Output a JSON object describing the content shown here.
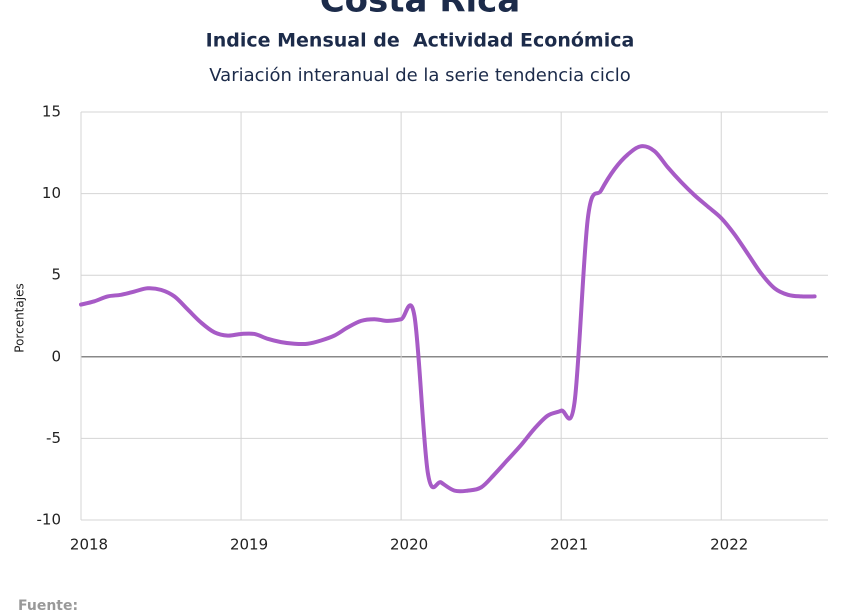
{
  "chart_data": {
    "type": "line",
    "title": "Costa Rica",
    "subtitle": "Indice Mensual de  Actividad Económica",
    "subtitle2": "Variación interanual de la serie tendencia ciclo",
    "y_label": "Porcentajes",
    "source": "Fuente:",
    "x": [
      2018,
      2018.0833,
      2018.1667,
      2018.25,
      2018.3333,
      2018.4167,
      2018.5,
      2018.5833,
      2018.6667,
      2018.75,
      2018.8333,
      2018.9167,
      2019,
      2019.0833,
      2019.1667,
      2019.25,
      2019.3333,
      2019.4167,
      2019.5,
      2019.5833,
      2019.6667,
      2019.75,
      2019.8333,
      2019.9167,
      2020,
      2020.0833,
      2020.1667,
      2020.25,
      2020.3333,
      2020.4167,
      2020.5,
      2020.5833,
      2020.6667,
      2020.75,
      2020.8333,
      2020.9167,
      2021,
      2021.0833,
      2021.1667,
      2021.25,
      2021.3333,
      2021.4167,
      2021.5,
      2021.5833,
      2021.6667,
      2021.75,
      2021.8333,
      2021.9167,
      2022,
      2022.0833,
      2022.1667,
      2022.25,
      2022.3333,
      2022.4167,
      2022.5,
      2022.5833
    ],
    "series": [
      {
        "name": "Variación interanual",
        "color": "#a75bc6",
        "values": [
          3.2,
          3.4,
          3.7,
          3.8,
          4.0,
          4.2,
          4.1,
          3.7,
          2.9,
          2.1,
          1.5,
          1.3,
          1.4,
          1.4,
          1.1,
          0.9,
          0.8,
          0.8,
          1.0,
          1.3,
          1.8,
          2.2,
          2.3,
          2.2,
          2.3,
          2.5,
          -7.1,
          -7.7,
          -8.2,
          -8.2,
          -8.0,
          -7.2,
          -6.3,
          -5.4,
          -4.4,
          -3.6,
          -3.3,
          -2.8,
          8.5,
          10.2,
          11.5,
          12.4,
          12.9,
          12.6,
          11.6,
          10.7,
          9.9,
          9.2,
          8.5,
          7.5,
          6.3,
          5.1,
          4.2,
          3.8,
          3.7,
          3.7
        ]
      }
    ],
    "xlim": [
      2018,
      2022.667
    ],
    "xticks": [
      2018,
      2019,
      2020,
      2021,
      2022
    ],
    "ylim": [
      -10,
      15
    ],
    "yticks": [
      15,
      10,
      5,
      0,
      -5,
      -10
    ],
    "negative_tick_color": "#d00000",
    "grid": true
  }
}
